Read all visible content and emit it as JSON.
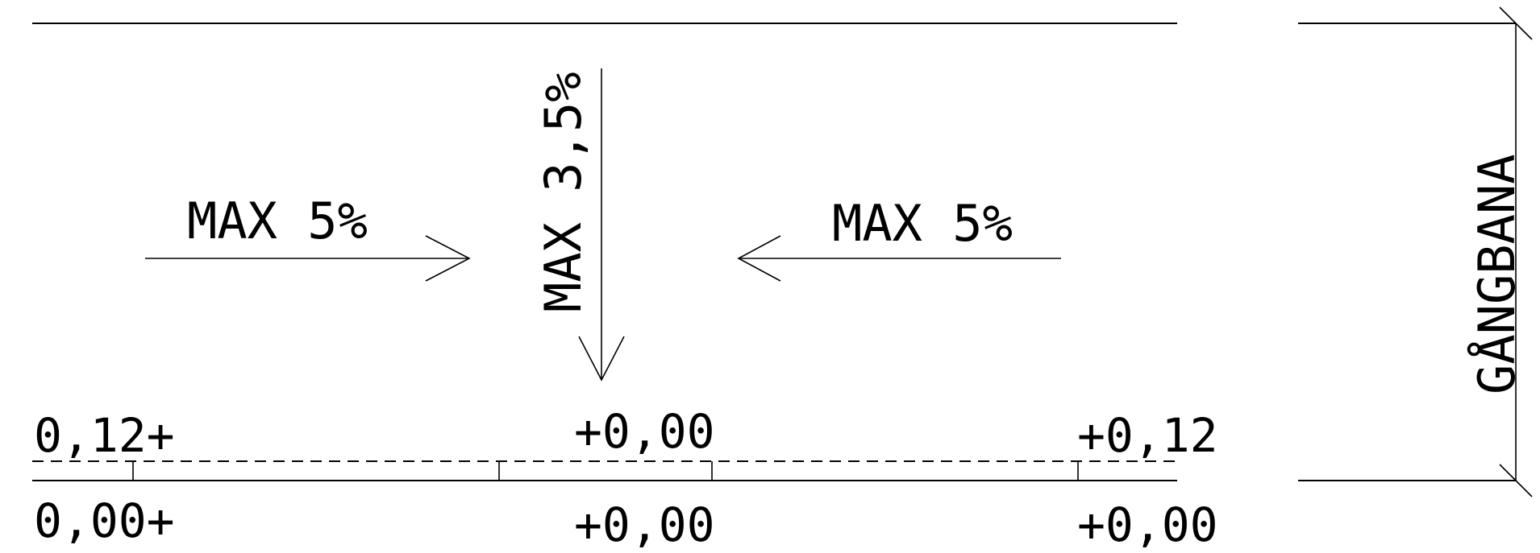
{
  "slope_labels": {
    "left": "MAX 5%",
    "right": "MAX 5%",
    "vertical": "MAX 3,5%"
  },
  "side_label": "GÅNGBANA",
  "elevations": {
    "top_left": "0,12+",
    "top_center": "+0,00",
    "top_right": "+0,12",
    "bottom_left": "0,00+",
    "bottom_center": "+0,00",
    "bottom_right": "+0,00"
  }
}
